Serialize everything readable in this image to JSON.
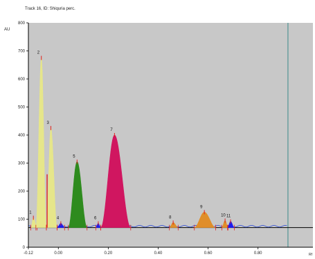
{
  "header": {
    "title": "Track 16, ID: Shiquria perc."
  },
  "chart_data": {
    "type": "area",
    "title": "Track 16, ID: Shiquria perc.",
    "ylabel": "AU",
    "xlabel": "Rf",
    "xlim": [
      -0.12,
      1.02
    ],
    "ylim": [
      0,
      800
    ],
    "x_ticks": [
      -0.12,
      0.0,
      0.2,
      0.4,
      0.6,
      0.8
    ],
    "x_tick_labels": [
      "-0.12",
      "0.00",
      "0.20",
      "0.40",
      "0.60",
      "0.80"
    ],
    "y_ticks": [
      0,
      100,
      200,
      300,
      400,
      500,
      600,
      700,
      800
    ],
    "y_tick_labels": [
      "0",
      "100",
      "200",
      "300",
      "400",
      "500",
      "600",
      "700",
      "800"
    ],
    "plot_background": "#c8c8c8",
    "baseline": 70,
    "front_lines_x": [
      -0.12,
      0.92
    ],
    "peaks": [
      {
        "label": "1",
        "start": -0.11,
        "apex": -0.1,
        "end": -0.085,
        "height": 105,
        "color": "#e6e68a"
      },
      {
        "label": "2",
        "start": -0.09,
        "apex": -0.068,
        "end": -0.048,
        "height": 675,
        "color": "#e6e68a"
      },
      {
        "label": "3",
        "start": -0.048,
        "apex": -0.03,
        "end": -0.005,
        "height": 425,
        "color": "#e6e68a"
      },
      {
        "label": "4",
        "start": -0.005,
        "apex": 0.01,
        "end": 0.025,
        "height": 85,
        "color": "#1c1cf0"
      },
      {
        "label": "5",
        "start": 0.04,
        "apex": 0.075,
        "end": 0.115,
        "height": 305,
        "color": "#2e8b1e"
      },
      {
        "label": "6",
        "start": 0.15,
        "apex": 0.16,
        "end": 0.17,
        "height": 85,
        "color": "#1c1cf0"
      },
      {
        "label": "7",
        "start": 0.17,
        "apex": 0.225,
        "end": 0.29,
        "height": 400,
        "color": "#d01660"
      },
      {
        "label": "8",
        "start": 0.445,
        "apex": 0.46,
        "end": 0.48,
        "height": 88,
        "color": "#e08e2a"
      },
      {
        "label": "9",
        "start": 0.545,
        "apex": 0.585,
        "end": 0.63,
        "height": 125,
        "color": "#e08e2a"
      },
      {
        "label": "10",
        "start": 0.655,
        "apex": 0.668,
        "end": 0.68,
        "height": 95,
        "color": "#e08e2a"
      },
      {
        "label": "11",
        "start": 0.678,
        "apex": 0.69,
        "end": 0.705,
        "height": 92,
        "color": "#1c1cf0"
      }
    ],
    "trace_color": "#2a4ad8",
    "peak_marker_color": "#e02020"
  }
}
